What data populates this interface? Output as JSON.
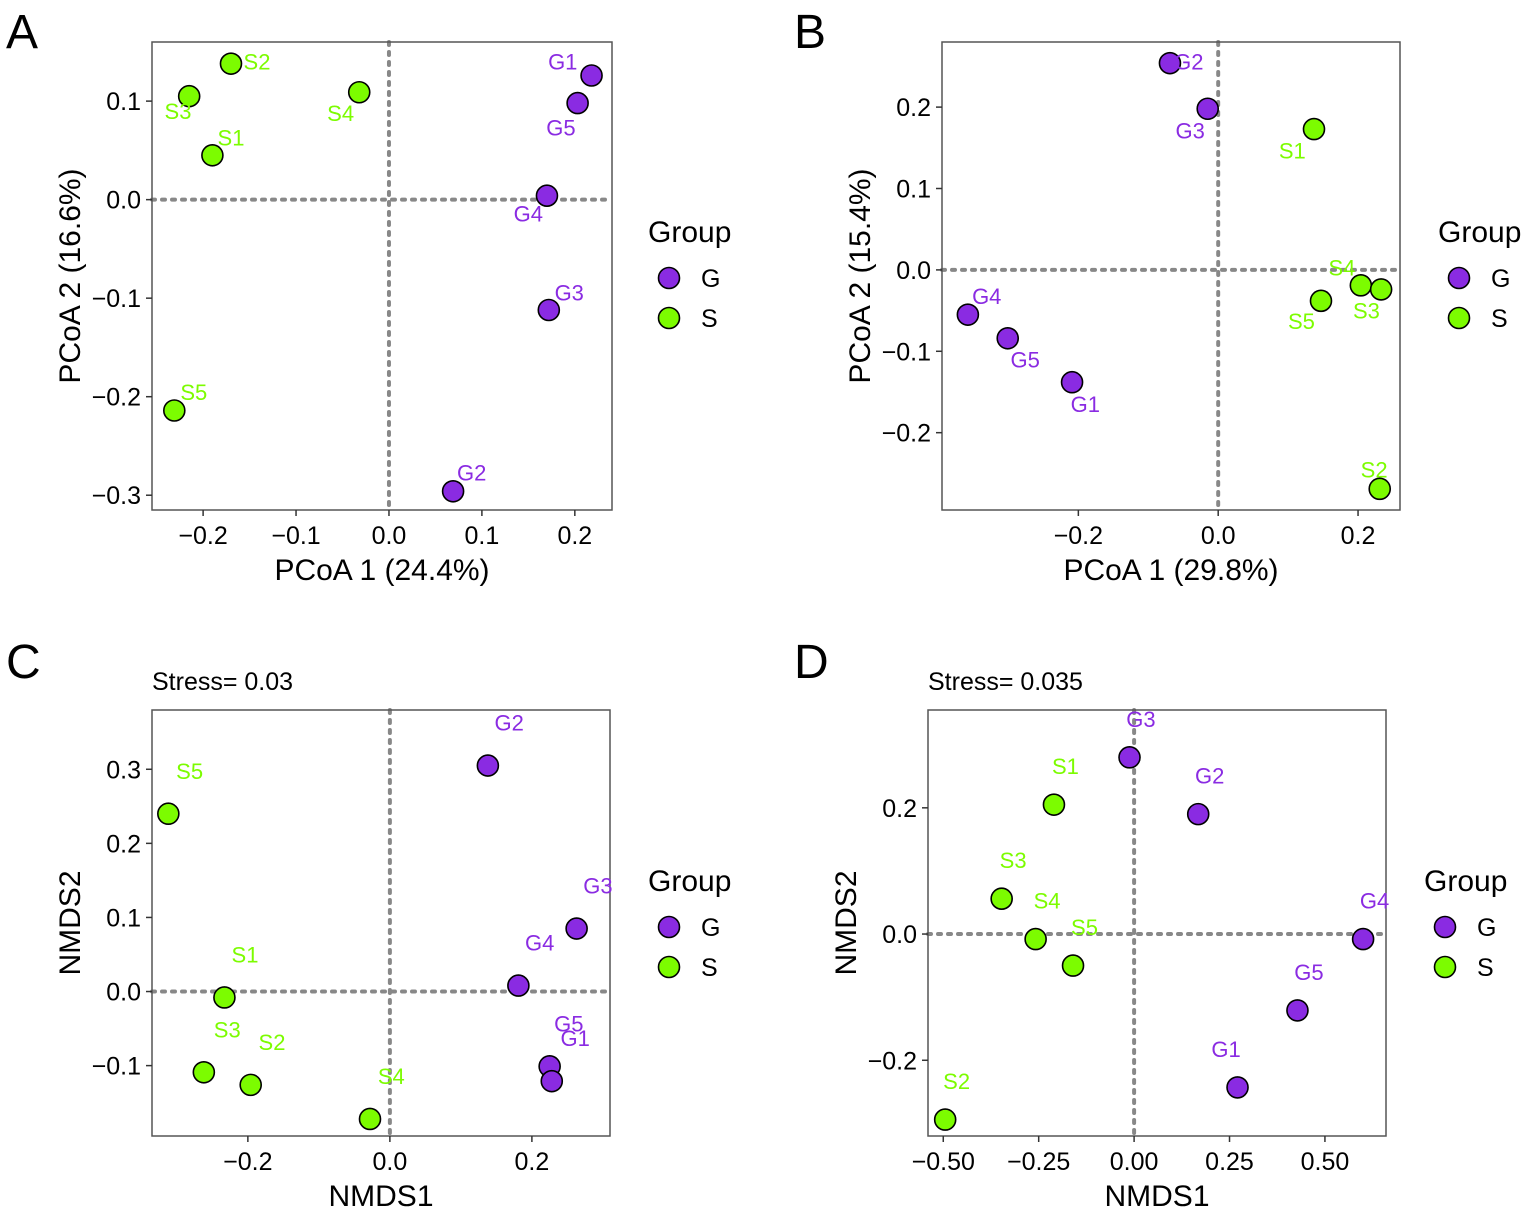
{
  "colors": {
    "G": "#8a2be2",
    "S": "#7cfc00",
    "frame": "#555555",
    "zero": "#888888",
    "text": "#000000"
  },
  "chart_data": [
    {
      "panel": "A",
      "type": "scatter",
      "subtitle": "",
      "xlabel": "PCoA 1 (24.4%)",
      "ylabel": "PCoA 2 (16.6%)",
      "xlim": [
        -0.255,
        0.24
      ],
      "ylim": [
        -0.315,
        0.16
      ],
      "xticks": [
        -0.2,
        -0.1,
        0.0,
        0.1,
        0.2
      ],
      "xtick_labels": [
        "−0.2",
        "−0.1",
        "0.0",
        "0.1",
        "0.2"
      ],
      "yticks": [
        -0.3,
        -0.2,
        -0.1,
        0.0,
        0.1
      ],
      "ytick_labels": [
        "−0.3",
        "−0.2",
        "−0.1",
        "0.0",
        "0.1"
      ],
      "legend": {
        "title": "Group",
        "entries": [
          "G",
          "S"
        ]
      },
      "points": [
        {
          "label": "G1",
          "group": "G",
          "x": 0.218,
          "y": 0.126,
          "dx": -0.031,
          "dy": 0.014
        },
        {
          "label": "G5",
          "group": "G",
          "x": 0.203,
          "y": 0.098,
          "dx": -0.018,
          "dy": -0.025
        },
        {
          "label": "G4",
          "group": "G",
          "x": 0.17,
          "y": 0.004,
          "dx": -0.02,
          "dy": -0.018
        },
        {
          "label": "G3",
          "group": "G",
          "x": 0.172,
          "y": -0.112,
          "dx": 0.022,
          "dy": 0.018
        },
        {
          "label": "G2",
          "group": "G",
          "x": 0.069,
          "y": -0.296,
          "dx": 0.02,
          "dy": 0.019
        },
        {
          "label": "S2",
          "group": "S",
          "x": -0.17,
          "y": 0.138,
          "dx": 0.028,
          "dy": 0.002
        },
        {
          "label": "S3",
          "group": "S",
          "x": -0.215,
          "y": 0.105,
          "dx": -0.012,
          "dy": -0.015
        },
        {
          "label": "S4",
          "group": "S",
          "x": -0.032,
          "y": 0.109,
          "dx": -0.02,
          "dy": -0.021
        },
        {
          "label": "S1",
          "group": "S",
          "x": -0.19,
          "y": 0.045,
          "dx": 0.02,
          "dy": 0.018
        },
        {
          "label": "S5",
          "group": "S",
          "x": -0.231,
          "y": -0.214,
          "dx": 0.021,
          "dy": 0.019
        }
      ]
    },
    {
      "panel": "B",
      "type": "scatter",
      "subtitle": "",
      "xlabel": "PCoA 1 (29.8%)",
      "ylabel": "PCoA 2 (15.4%)",
      "xlim": [
        -0.395,
        0.26
      ],
      "ylim": [
        -0.295,
        0.28
      ],
      "xticks": [
        -0.2,
        0.0,
        0.2
      ],
      "xtick_labels": [
        "−0.2",
        "0.0",
        "0.2"
      ],
      "yticks": [
        -0.2,
        -0.1,
        0.0,
        0.1,
        0.2
      ],
      "ytick_labels": [
        "−0.2",
        "−0.1",
        "0.0",
        "0.1",
        "0.2"
      ],
      "legend": {
        "title": "Group",
        "entries": [
          "G",
          "S"
        ]
      },
      "points": [
        {
          "label": "G2",
          "group": "G",
          "x": -0.069,
          "y": 0.254,
          "dx": 0.027,
          "dy": 0.002
        },
        {
          "label": "G3",
          "group": "G",
          "x": -0.015,
          "y": 0.198,
          "dx": -0.025,
          "dy": -0.027
        },
        {
          "label": "G4",
          "group": "G",
          "x": -0.358,
          "y": -0.055,
          "dx": 0.027,
          "dy": 0.023
        },
        {
          "label": "G5",
          "group": "G",
          "x": -0.301,
          "y": -0.084,
          "dx": 0.025,
          "dy": -0.026
        },
        {
          "label": "G1",
          "group": "G",
          "x": -0.209,
          "y": -0.138,
          "dx": 0.019,
          "dy": -0.027
        },
        {
          "label": "S1",
          "group": "S",
          "x": 0.137,
          "y": 0.173,
          "dx": -0.031,
          "dy": -0.026
        },
        {
          "label": "S4",
          "group": "S",
          "x": 0.204,
          "y": -0.019,
          "dx": -0.027,
          "dy": 0.022
        },
        {
          "label": "S3",
          "group": "S",
          "x": 0.233,
          "y": -0.024,
          "dx": -0.021,
          "dy": -0.026
        },
        {
          "label": "S5",
          "group": "S",
          "x": 0.147,
          "y": -0.038,
          "dx": -0.028,
          "dy": -0.025
        },
        {
          "label": "S2",
          "group": "S",
          "x": 0.231,
          "y": -0.269,
          "dx": -0.008,
          "dy": 0.024
        }
      ]
    },
    {
      "panel": "C",
      "type": "scatter",
      "subtitle": "Stress= 0.03",
      "xlabel": "NMDS1",
      "ylabel": "NMDS2",
      "xlim": [
        -0.335,
        0.31
      ],
      "ylim": [
        -0.195,
        0.38
      ],
      "xticks": [
        -0.2,
        0.0,
        0.2
      ],
      "xtick_labels": [
        "−0.2",
        "0.0",
        "0.2"
      ],
      "yticks": [
        -0.1,
        0.0,
        0.1,
        0.2,
        0.3
      ],
      "ytick_labels": [
        "−0.1",
        "0.0",
        "0.1",
        "0.2",
        "0.3"
      ],
      "legend": {
        "title": "Group",
        "entries": [
          "G",
          "S"
        ]
      },
      "points": [
        {
          "label": "G2",
          "group": "G",
          "x": 0.138,
          "y": 0.305,
          "dx": 0.03,
          "dy": 0.058
        },
        {
          "label": "G3",
          "group": "G",
          "x": 0.263,
          "y": 0.085,
          "dx": 0.03,
          "dy": 0.058
        },
        {
          "label": "G4",
          "group": "G",
          "x": 0.181,
          "y": 0.008,
          "dx": 0.03,
          "dy": 0.058
        },
        {
          "label": "G5",
          "group": "G",
          "x": 0.225,
          "y": -0.101,
          "dx": 0.027,
          "dy": 0.058
        },
        {
          "label": "G1",
          "group": "G",
          "x": 0.228,
          "y": -0.121,
          "dx": 0.033,
          "dy": 0.058
        },
        {
          "label": "S5",
          "group": "S",
          "x": -0.312,
          "y": 0.24,
          "dx": 0.03,
          "dy": 0.058
        },
        {
          "label": "S1",
          "group": "S",
          "x": -0.233,
          "y": -0.008,
          "dx": 0.029,
          "dy": 0.058
        },
        {
          "label": "S3",
          "group": "S",
          "x": -0.262,
          "y": -0.109,
          "dx": 0.033,
          "dy": 0.058
        },
        {
          "label": "S2",
          "group": "S",
          "x": -0.196,
          "y": -0.126,
          "dx": 0.03,
          "dy": 0.058
        },
        {
          "label": "S4",
          "group": "S",
          "x": -0.028,
          "y": -0.172,
          "dx": 0.03,
          "dy": 0.058
        }
      ]
    },
    {
      "panel": "D",
      "type": "scatter",
      "subtitle": "Stress= 0.035",
      "xlabel": "NMDS1",
      "ylabel": "NMDS2",
      "xlim": [
        -0.54,
        0.66
      ],
      "ylim": [
        -0.32,
        0.355
      ],
      "xticks": [
        -0.5,
        -0.25,
        0.0,
        0.25,
        0.5
      ],
      "xtick_labels": [
        "−0.50",
        "−0.25",
        "0.00",
        "0.25",
        "0.50"
      ],
      "yticks": [
        -0.2,
        0.0,
        0.2
      ],
      "ytick_labels": [
        "−0.2",
        "0.0",
        "0.2"
      ],
      "legend": {
        "title": "Group",
        "entries": [
          "G",
          "S"
        ]
      },
      "points": [
        {
          "label": "G3",
          "group": "G",
          "x": -0.012,
          "y": 0.28,
          "dx": 0.03,
          "dy": 0.061
        },
        {
          "label": "G2",
          "group": "G",
          "x": 0.168,
          "y": 0.19,
          "dx": 0.03,
          "dy": 0.061
        },
        {
          "label": "G4",
          "group": "G",
          "x": 0.6,
          "y": -0.008,
          "dx": 0.03,
          "dy": 0.061
        },
        {
          "label": "G5",
          "group": "G",
          "x": 0.428,
          "y": -0.121,
          "dx": 0.03,
          "dy": 0.061
        },
        {
          "label": "G1",
          "group": "G",
          "x": 0.271,
          "y": -0.243,
          "dx": -0.03,
          "dy": 0.061
        },
        {
          "label": "S1",
          "group": "S",
          "x": -0.21,
          "y": 0.205,
          "dx": 0.03,
          "dy": 0.061
        },
        {
          "label": "S3",
          "group": "S",
          "x": -0.347,
          "y": 0.056,
          "dx": 0.03,
          "dy": 0.061
        },
        {
          "label": "S4",
          "group": "S",
          "x": -0.258,
          "y": -0.008,
          "dx": 0.03,
          "dy": 0.061
        },
        {
          "label": "S5",
          "group": "S",
          "x": -0.16,
          "y": -0.05,
          "dx": 0.03,
          "dy": 0.061
        },
        {
          "label": "S2",
          "group": "S",
          "x": -0.495,
          "y": -0.294,
          "dx": 0.03,
          "dy": 0.061
        }
      ]
    }
  ]
}
